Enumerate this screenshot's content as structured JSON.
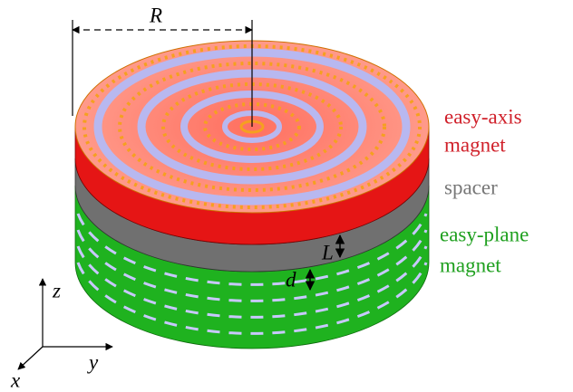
{
  "labels": {
    "radius": "R",
    "easy_axis": "easy-axis",
    "magnet_top": "magnet",
    "spacer": "spacer",
    "easy_plane": "easy-plane",
    "magnet_bottom": "magnet",
    "thickness_L": "L",
    "distance_d": "d",
    "axis_z": "z",
    "axis_y": "y",
    "axis_x": "x"
  }
}
